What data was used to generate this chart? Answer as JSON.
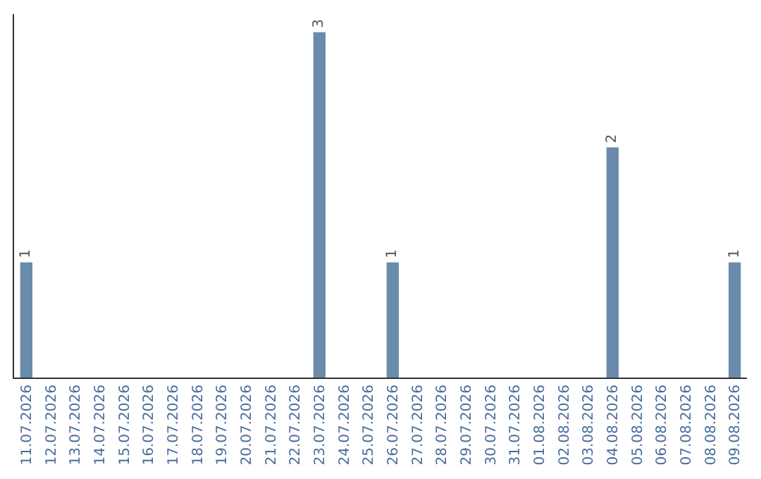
{
  "chart_data": {
    "type": "bar",
    "categories": [
      "11.07.2026",
      "12.07.2026",
      "13.07.2026",
      "14.07.2026",
      "15.07.2026",
      "16.07.2026",
      "17.07.2026",
      "18.07.2026",
      "19.07.2026",
      "20.07.2026",
      "21.07.2026",
      "22.07.2026",
      "23.07.2026",
      "24.07.2026",
      "25.07.2026",
      "26.07.2026",
      "27.07.2026",
      "28.07.2026",
      "29.07.2026",
      "30.07.2026",
      "31.07.2026",
      "01.08.2026",
      "02.08.2026",
      "03.08.2026",
      "04.08.2026",
      "05.08.2026",
      "06.08.2026",
      "07.08.2026",
      "08.08.2026",
      "09.08.2026"
    ],
    "values": [
      1,
      0,
      0,
      0,
      0,
      0,
      0,
      0,
      0,
      0,
      0,
      0,
      3,
      0,
      0,
      1,
      0,
      0,
      0,
      0,
      0,
      0,
      0,
      0,
      2,
      0,
      0,
      0,
      0,
      1
    ],
    "value_labels": [
      "1",
      null,
      null,
      null,
      null,
      null,
      null,
      null,
      null,
      null,
      null,
      null,
      "3",
      null,
      null,
      "1",
      null,
      null,
      null,
      null,
      null,
      null,
      null,
      null,
      "2",
      null,
      null,
      null,
      null,
      "1"
    ],
    "color": "#6a8bab",
    "tick_labels": "x"
  }
}
